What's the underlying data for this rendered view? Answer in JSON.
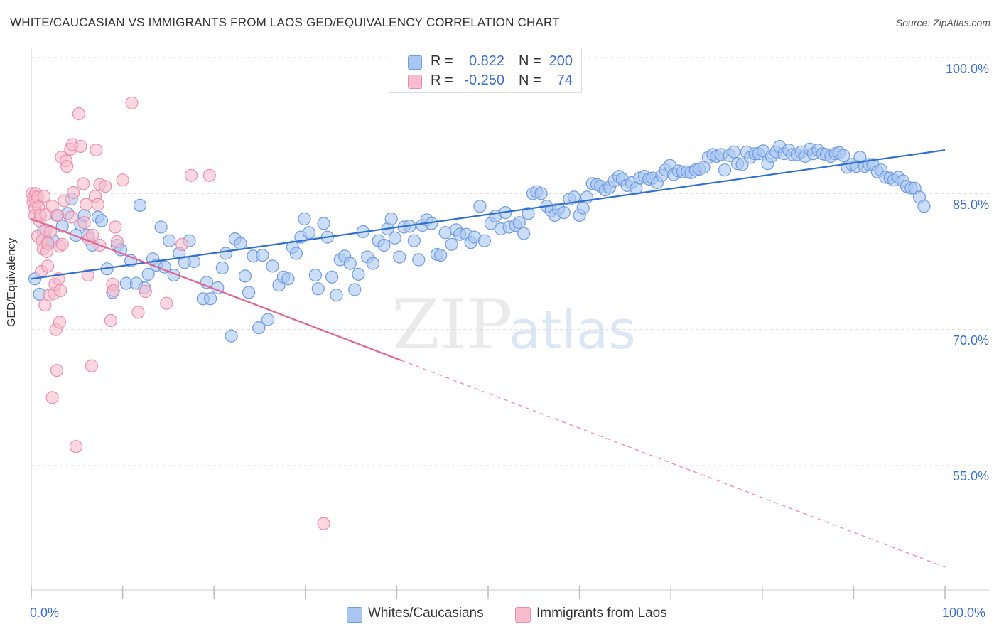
{
  "header": {
    "title": "WHITE/CAUCASIAN VS IMMIGRANTS FROM LAOS GED/EQUIVALENCY CORRELATION CHART",
    "source": "Source: ZipAtlas.com"
  },
  "legend": {
    "rows": [
      {
        "r_label": "R =",
        "r_value": "0.822",
        "n_label": "N =",
        "n_value": "200"
      },
      {
        "r_label": "R =",
        "r_value": "-0.250",
        "n_label": "N =",
        "n_value": "74"
      }
    ]
  },
  "watermark": {
    "zip": "ZIP",
    "atlas": "atlas"
  },
  "colors": {
    "blue_fill": "#a9c6f2",
    "blue_stroke": "#6f9be0",
    "blue_line": "#2f6fd0",
    "pink_fill": "#f7bccd",
    "pink_stroke": "#ec8eab",
    "pink_line": "#e2648f",
    "axis_text": "#3a6fd8",
    "grid": "#dddddd"
  },
  "chart_data": {
    "type": "scatter",
    "title": "WHITE/CAUCASIAN VS IMMIGRANTS FROM LAOS GED/EQUIVALENCY CORRELATION CHART",
    "xlabel": "",
    "ylabel": "GED/Equivalency",
    "xlim": [
      0,
      100
    ],
    "ylim": [
      40,
      102.5
    ],
    "x_tick_labels": [
      "0.0%",
      "100.0%"
    ],
    "y_ticks": [
      55,
      70,
      85,
      100
    ],
    "y_tick_labels": [
      "55.0%",
      "70.0%",
      "85.0%",
      "100.0%"
    ],
    "grid": true,
    "legend_position": "top-center",
    "series": [
      {
        "name": "Whites/Caucasians",
        "color": "#a9c6f2",
        "trend": {
          "x": [
            0,
            100
          ],
          "y": [
            75.6,
            89.8
          ]
        },
        "points": [
          [
            0.4,
            75.6
          ],
          [
            0.9,
            73.9
          ],
          [
            1.3,
            80.8
          ],
          [
            1.8,
            79.7
          ],
          [
            2.4,
            79.8
          ],
          [
            2.8,
            82.6
          ],
          [
            3.4,
            81.4
          ],
          [
            4.0,
            82.8
          ],
          [
            4.4,
            84.4
          ],
          [
            4.9,
            80.4
          ],
          [
            5.4,
            81.6
          ],
          [
            5.8,
            82.6
          ],
          [
            6.2,
            80.4
          ],
          [
            6.7,
            79.3
          ],
          [
            7.3,
            82.4
          ],
          [
            7.7,
            82.0
          ],
          [
            8.3,
            76.7
          ],
          [
            8.9,
            74.1
          ],
          [
            9.4,
            79.3
          ],
          [
            9.8,
            78.8
          ],
          [
            10.4,
            75.1
          ],
          [
            10.9,
            77.6
          ],
          [
            11.5,
            75.1
          ],
          [
            11.9,
            83.7
          ],
          [
            12.4,
            74.6
          ],
          [
            12.8,
            76.1
          ],
          [
            13.3,
            77.8
          ],
          [
            13.7,
            77.1
          ],
          [
            14.2,
            81.3
          ],
          [
            14.6,
            76.9
          ],
          [
            15.1,
            79.8
          ],
          [
            15.6,
            76.0
          ],
          [
            16.2,
            78.4
          ],
          [
            16.8,
            77.4
          ],
          [
            17.3,
            79.8
          ],
          [
            17.8,
            77.5
          ],
          [
            18.8,
            73.4
          ],
          [
            19.2,
            75.2
          ],
          [
            19.6,
            73.4
          ],
          [
            20.4,
            74.6
          ],
          [
            20.9,
            76.8
          ],
          [
            21.3,
            78.4
          ],
          [
            21.9,
            69.3
          ],
          [
            22.3,
            80.0
          ],
          [
            22.9,
            79.5
          ],
          [
            23.4,
            75.9
          ],
          [
            23.8,
            74.1
          ],
          [
            24.3,
            78.1
          ],
          [
            24.9,
            70.2
          ],
          [
            25.3,
            78.2
          ],
          [
            25.9,
            71.1
          ],
          [
            26.4,
            77.0
          ],
          [
            27.1,
            74.9
          ],
          [
            27.6,
            75.8
          ],
          [
            28.1,
            75.6
          ],
          [
            28.6,
            79.1
          ],
          [
            29.0,
            78.4
          ],
          [
            29.5,
            80.2
          ],
          [
            29.9,
            82.2
          ],
          [
            30.4,
            80.7
          ],
          [
            31.1,
            76.0
          ],
          [
            31.4,
            74.5
          ],
          [
            32.0,
            81.7
          ],
          [
            32.4,
            80.2
          ],
          [
            32.9,
            75.8
          ],
          [
            33.4,
            73.8
          ],
          [
            33.8,
            77.7
          ],
          [
            34.3,
            78.1
          ],
          [
            34.9,
            77.3
          ],
          [
            35.4,
            74.4
          ],
          [
            35.8,
            76.1
          ],
          [
            36.3,
            80.8
          ],
          [
            36.8,
            78.0
          ],
          [
            37.4,
            77.3
          ],
          [
            38.0,
            79.8
          ],
          [
            38.6,
            79.3
          ],
          [
            39.0,
            81.1
          ],
          [
            39.4,
            82.2
          ],
          [
            39.8,
            80.1
          ],
          [
            40.3,
            78.0
          ],
          [
            40.8,
            81.3
          ],
          [
            41.4,
            81.4
          ],
          [
            41.9,
            79.8
          ],
          [
            42.4,
            77.7
          ],
          [
            42.8,
            81.5
          ],
          [
            43.3,
            82.1
          ],
          [
            43.8,
            81.7
          ],
          [
            44.4,
            78.3
          ],
          [
            44.8,
            78.2
          ],
          [
            45.3,
            80.7
          ],
          [
            46.0,
            79.4
          ],
          [
            46.5,
            81.0
          ],
          [
            46.9,
            80.5
          ],
          [
            47.6,
            80.5
          ],
          [
            48.1,
            79.6
          ],
          [
            48.5,
            80.2
          ],
          [
            49.1,
            83.6
          ],
          [
            49.6,
            79.8
          ],
          [
            50.3,
            81.7
          ],
          [
            50.8,
            82.5
          ],
          [
            51.4,
            81.1
          ],
          [
            51.9,
            82.9
          ],
          [
            52.3,
            81.3
          ],
          [
            53.0,
            81.5
          ],
          [
            53.4,
            81.8
          ],
          [
            53.9,
            80.6
          ],
          [
            54.4,
            82.8
          ],
          [
            54.9,
            85.0
          ],
          [
            55.3,
            85.2
          ],
          [
            55.8,
            85.0
          ],
          [
            56.4,
            83.6
          ],
          [
            56.9,
            83.1
          ],
          [
            57.3,
            82.6
          ],
          [
            57.7,
            83.3
          ],
          [
            58.3,
            82.9
          ],
          [
            58.9,
            84.4
          ],
          [
            59.4,
            84.6
          ],
          [
            60.0,
            82.6
          ],
          [
            60.4,
            83.4
          ],
          [
            60.8,
            84.6
          ],
          [
            61.4,
            86.1
          ],
          [
            61.9,
            86.0
          ],
          [
            62.3,
            85.8
          ],
          [
            62.8,
            85.4
          ],
          [
            63.3,
            85.7
          ],
          [
            63.8,
            86.4
          ],
          [
            64.3,
            86.9
          ],
          [
            64.7,
            86.6
          ],
          [
            65.2,
            85.9
          ],
          [
            65.7,
            86.2
          ],
          [
            66.2,
            85.6
          ],
          [
            66.6,
            86.7
          ],
          [
            67.1,
            86.9
          ],
          [
            67.6,
            86.6
          ],
          [
            68.0,
            86.7
          ],
          [
            68.5,
            86.2
          ],
          [
            69.0,
            87.0
          ],
          [
            69.4,
            87.6
          ],
          [
            69.9,
            88.1
          ],
          [
            70.3,
            87.1
          ],
          [
            70.8,
            87.5
          ],
          [
            71.3,
            87.4
          ],
          [
            71.8,
            87.4
          ],
          [
            72.2,
            87.3
          ],
          [
            72.7,
            87.6
          ],
          [
            73.1,
            87.7
          ],
          [
            73.6,
            87.9
          ],
          [
            74.1,
            89.0
          ],
          [
            74.6,
            89.3
          ],
          [
            75.0,
            89.1
          ],
          [
            75.5,
            89.3
          ],
          [
            75.9,
            87.6
          ],
          [
            76.4,
            89.2
          ],
          [
            76.9,
            89.6
          ],
          [
            77.3,
            88.3
          ],
          [
            77.8,
            88.2
          ],
          [
            78.3,
            89.6
          ],
          [
            78.7,
            89.0
          ],
          [
            79.2,
            89.4
          ],
          [
            79.6,
            89.4
          ],
          [
            80.1,
            89.7
          ],
          [
            80.6,
            88.3
          ],
          [
            81.0,
            89.1
          ],
          [
            81.5,
            89.6
          ],
          [
            81.9,
            90.2
          ],
          [
            82.4,
            89.4
          ],
          [
            82.9,
            89.8
          ],
          [
            83.3,
            89.3
          ],
          [
            83.8,
            89.3
          ],
          [
            84.3,
            89.6
          ],
          [
            84.7,
            89.1
          ],
          [
            85.2,
            89.9
          ],
          [
            85.6,
            89.4
          ],
          [
            86.1,
            89.8
          ],
          [
            86.6,
            89.4
          ],
          [
            87.0,
            89.3
          ],
          [
            87.5,
            89.1
          ],
          [
            88.0,
            89.4
          ],
          [
            88.4,
            89.5
          ],
          [
            88.9,
            89.2
          ],
          [
            89.3,
            87.9
          ],
          [
            89.8,
            88.2
          ],
          [
            90.3,
            88.0
          ],
          [
            90.7,
            89.0
          ],
          [
            91.2,
            88.0
          ],
          [
            91.7,
            88.2
          ],
          [
            92.1,
            88.2
          ],
          [
            92.6,
            87.4
          ],
          [
            93.0,
            87.6
          ],
          [
            93.5,
            86.8
          ],
          [
            94.0,
            86.7
          ],
          [
            94.4,
            86.5
          ],
          [
            94.9,
            86.8
          ],
          [
            95.4,
            86.4
          ],
          [
            95.8,
            85.8
          ],
          [
            96.3,
            85.6
          ],
          [
            96.7,
            85.6
          ],
          [
            97.2,
            84.6
          ],
          [
            97.7,
            83.6
          ]
        ]
      },
      {
        "name": "Immigrants from Laos",
        "color": "#f7bccd",
        "trend": {
          "x": [
            0,
            40.5
          ],
          "y": [
            82.2,
            66.6
          ]
        },
        "trend_dashed": {
          "x": [
            40.5,
            100
          ],
          "y": [
            66.6,
            43.8
          ]
        },
        "points": [
          [
            0.1,
            85.0
          ],
          [
            0.2,
            84.1
          ],
          [
            0.3,
            84.6
          ],
          [
            0.4,
            83.4
          ],
          [
            0.4,
            82.6
          ],
          [
            0.5,
            85.0
          ],
          [
            0.6,
            84.1
          ],
          [
            0.7,
            84.6
          ],
          [
            0.7,
            80.3
          ],
          [
            0.8,
            83.5
          ],
          [
            0.9,
            82.0
          ],
          [
            1.0,
            82.6
          ],
          [
            1.1,
            76.4
          ],
          [
            1.2,
            79.8
          ],
          [
            1.3,
            78.9
          ],
          [
            1.4,
            84.7
          ],
          [
            1.5,
            72.7
          ],
          [
            1.6,
            82.7
          ],
          [
            1.6,
            81.0
          ],
          [
            1.7,
            78.6
          ],
          [
            1.8,
            79.5
          ],
          [
            1.8,
            77.0
          ],
          [
            2.0,
            73.8
          ],
          [
            2.1,
            80.8
          ],
          [
            2.3,
            62.5
          ],
          [
            2.3,
            83.6
          ],
          [
            2.5,
            74.0
          ],
          [
            2.6,
            75.0
          ],
          [
            2.7,
            70.0
          ],
          [
            2.8,
            65.5
          ],
          [
            2.9,
            82.6
          ],
          [
            3.0,
            75.6
          ],
          [
            3.1,
            79.2
          ],
          [
            3.1,
            70.8
          ],
          [
            3.2,
            74.3
          ],
          [
            3.3,
            89.0
          ],
          [
            3.4,
            79.4
          ],
          [
            3.6,
            84.2
          ],
          [
            3.8,
            88.6
          ],
          [
            3.9,
            88.0
          ],
          [
            4.3,
            89.9
          ],
          [
            4.4,
            82.4
          ],
          [
            4.5,
            90.4
          ],
          [
            4.6,
            85.1
          ],
          [
            4.9,
            57.1
          ],
          [
            5.2,
            93.8
          ],
          [
            5.4,
            90.2
          ],
          [
            5.7,
            86.1
          ],
          [
            5.8,
            81.8
          ],
          [
            6.0,
            83.8
          ],
          [
            6.2,
            76.0
          ],
          [
            6.3,
            80.0
          ],
          [
            6.6,
            66.0
          ],
          [
            6.7,
            80.4
          ],
          [
            7.0,
            84.7
          ],
          [
            7.1,
            89.8
          ],
          [
            7.3,
            83.8
          ],
          [
            7.5,
            79.3
          ],
          [
            7.5,
            86.0
          ],
          [
            8.1,
            85.8
          ],
          [
            8.7,
            71.0
          ],
          [
            8.9,
            75.0
          ],
          [
            9.0,
            74.3
          ],
          [
            9.2,
            81.3
          ],
          [
            9.4,
            79.7
          ],
          [
            10.0,
            86.5
          ],
          [
            11.0,
            95.0
          ],
          [
            11.7,
            71.9
          ],
          [
            12.5,
            74.2
          ],
          [
            14.8,
            72.9
          ],
          [
            16.5,
            79.4
          ],
          [
            17.5,
            87.0
          ],
          [
            19.5,
            87.0
          ],
          [
            32.0,
            48.6
          ]
        ]
      }
    ]
  }
}
